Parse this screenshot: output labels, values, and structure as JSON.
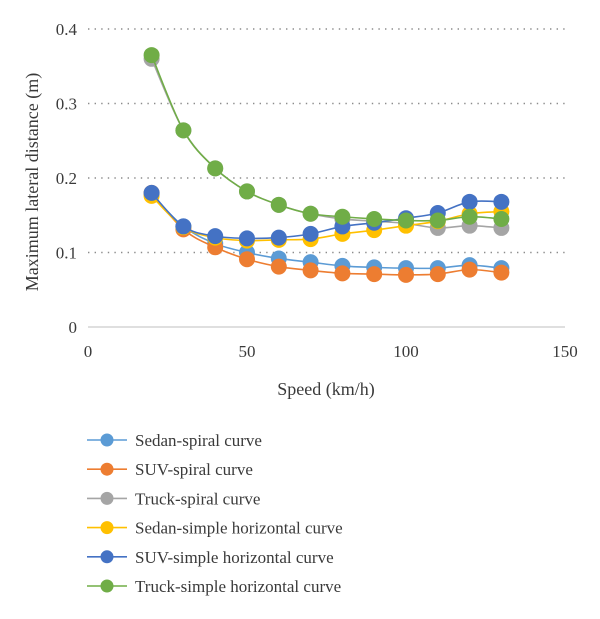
{
  "chart_data": {
    "type": "scatter",
    "xlabel": "Speed (km/h)",
    "ylabel": "Maximum lateral distance (m)",
    "xlim": [
      0,
      150
    ],
    "ylim": [
      0,
      0.4
    ],
    "xticks": [
      "0",
      "50",
      "100",
      "150"
    ],
    "yticks": [
      "0",
      "0.1",
      "0.2",
      "0.3",
      "0.4"
    ],
    "grid": "horizontal-dotted",
    "legend_position": "bottom",
    "x": [
      20,
      30,
      40,
      50,
      60,
      70,
      80,
      90,
      100,
      110,
      120,
      130
    ],
    "series": [
      {
        "name": "Sedan-spiral curve",
        "color": "#5b9bd5",
        "values": [
          0.178,
          0.135,
          0.112,
          0.1,
          0.092,
          0.087,
          0.082,
          0.08,
          0.079,
          0.079,
          0.083,
          0.079
        ]
      },
      {
        "name": "SUV-spiral curve",
        "color": "#ed7d31",
        "values": [
          0.18,
          0.131,
          0.107,
          0.091,
          0.081,
          0.076,
          0.072,
          0.071,
          0.07,
          0.071,
          0.077,
          0.073
        ]
      },
      {
        "name": "Truck-spiral curve",
        "color": "#a5a5a5",
        "values": [
          0.36,
          0.264,
          0.213,
          0.182,
          0.164,
          0.152,
          0.145,
          0.142,
          0.139,
          0.133,
          0.136,
          0.133
        ]
      },
      {
        "name": "Sedan-simple horizontal curve",
        "color": "#ffc000",
        "values": [
          0.176,
          0.134,
          0.12,
          0.116,
          0.117,
          0.118,
          0.125,
          0.13,
          0.136,
          0.142,
          0.152,
          0.155
        ]
      },
      {
        "name": "SUV-simple horizontal curve",
        "color": "#4472c4",
        "values": [
          0.18,
          0.135,
          0.122,
          0.119,
          0.12,
          0.125,
          0.135,
          0.14,
          0.146,
          0.153,
          0.168,
          0.168
        ]
      },
      {
        "name": "Truck-simple horizontal curve",
        "color": "#70ad47",
        "values": [
          0.365,
          0.264,
          0.213,
          0.182,
          0.164,
          0.152,
          0.148,
          0.145,
          0.143,
          0.143,
          0.148,
          0.145
        ]
      }
    ]
  }
}
